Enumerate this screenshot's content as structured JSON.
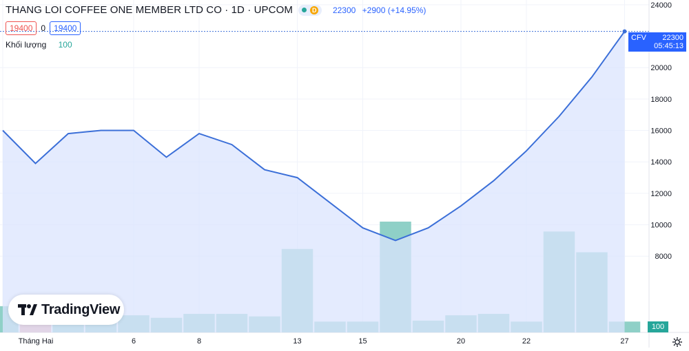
{
  "header": {
    "title": "THANG LOI COFFEE ONE MEMBER LTD CO · 1D · UPCOM",
    "badge": "D",
    "last_price": "22300",
    "change": "+2900 (+14.95%)",
    "bid": "19400",
    "spread": "0",
    "ask": "19400"
  },
  "volume_row": {
    "label": "Khối lượng",
    "value": "100"
  },
  "price_tag": {
    "symbol": "CFV",
    "price": "22300",
    "countdown": "05:45:13"
  },
  "volume_tag": "100",
  "logo_text": "TradingView",
  "colors": {
    "line": "#3b6fd8",
    "area": "#dbe4fd",
    "vol_up": "#8fd0c7",
    "vol_down": "#f2a7a5",
    "accent": "#2962ff"
  },
  "chart_data": {
    "type": "area",
    "x_ticks": [
      "Tháng Hai",
      "6",
      "8",
      "13",
      "15",
      "20",
      "22",
      "27"
    ],
    "y_ticks": [
      "24000",
      "20000",
      "18000",
      "16000",
      "14000",
      "12000",
      "10000",
      "8000"
    ],
    "ylim": [
      3150,
      24300
    ],
    "price": [
      16000,
      13900,
      15800,
      16000,
      16000,
      14300,
      15800,
      15100,
      13500,
      13000,
      11400,
      9800,
      9000,
      9800,
      11200,
      12800,
      14700,
      16900,
      19400,
      22300
    ],
    "volume": [
      4820,
      3750,
      4330,
      3820,
      4240,
      4080,
      4330,
      4330,
      4170,
      8460,
      3840,
      3840,
      10200,
      3900,
      4240,
      4330,
      3840,
      9570,
      8250,
      3840
    ],
    "volume_up": [
      true,
      false,
      true,
      true,
      true,
      true,
      true,
      true,
      true,
      true,
      true,
      true,
      true,
      true,
      true,
      true,
      true,
      true,
      true,
      true
    ]
  }
}
